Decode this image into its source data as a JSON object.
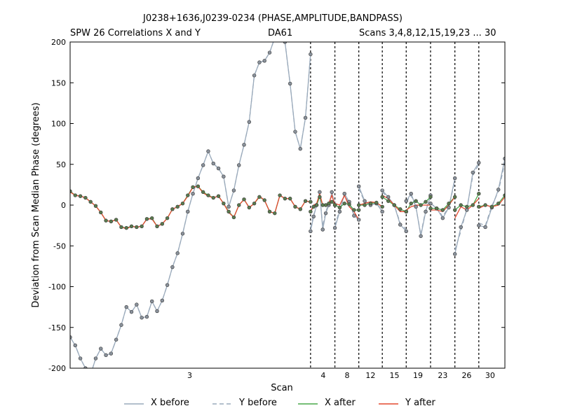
{
  "chart_data": {
    "type": "line",
    "title": "J0238+1636,J0239-0234 (PHASE,AMPLITUDE,BANDPASS)",
    "subtitle_left": "SPW 26 Correlations X and Y",
    "subtitle_center": "DA61",
    "subtitle_right": "Scans 3,4,8,12,15,19,23 ... 30",
    "xlabel": "Scan",
    "ylabel": "Deviation from Scan Median Phase (degrees)",
    "ylim": [
      -200,
      200
    ],
    "yticks": [
      -200,
      -150,
      -100,
      -50,
      0,
      50,
      100,
      150,
      200
    ],
    "grid": false,
    "legend_position": "bottom",
    "xticks": [
      {
        "scan": "3",
        "fraction": 0.275
      },
      {
        "scan": "4",
        "fraction": 0.582
      },
      {
        "scan": "8",
        "fraction": 0.637
      },
      {
        "scan": "12",
        "fraction": 0.691
      },
      {
        "scan": "15",
        "fraction": 0.746
      },
      {
        "scan": "19",
        "fraction": 0.8
      },
      {
        "scan": "23",
        "fraction": 0.857
      },
      {
        "scan": "26",
        "fraction": 0.912
      },
      {
        "scan": "30",
        "fraction": 0.966
      }
    ],
    "scan_boundaries_fraction": [
      0.553,
      0.609,
      0.664,
      0.718,
      0.773,
      0.829,
      0.885,
      0.94
    ],
    "series": [
      {
        "name": "X before",
        "color": "#9aaabb",
        "style": "solid",
        "segments": [
          {
            "x0": 0.0,
            "x1": 0.553,
            "values": [
              -162,
              -172,
              -188,
              -200,
              -208,
              -188,
              -176,
              -184,
              -182,
              -165,
              -147,
              -125,
              -131,
              -122,
              -138,
              -137,
              -118,
              -130,
              -117,
              -98,
              -76,
              -59,
              -35,
              -8,
              14,
              33,
              49,
              66,
              51,
              45,
              35,
              -2,
              18,
              49,
              74,
              102,
              159,
              175,
              177,
              187,
              205,
              213,
              200,
              149,
              90,
              69,
              107,
              185
            ]
          },
          {
            "x0": 0.553,
            "x1": 0.609,
            "values": [
              -32,
              -14,
              0,
              16,
              -30,
              -10,
              0,
              16,
              0
            ]
          },
          {
            "x0": 0.609,
            "x1": 0.664,
            "values": [
              -28,
              -8,
              14,
              4,
              -13,
              -18
            ]
          },
          {
            "x0": 0.664,
            "x1": 0.718,
            "values": [
              23,
              5,
              0,
              2,
              -8
            ]
          },
          {
            "x0": 0.718,
            "x1": 0.773,
            "values": [
              18,
              10,
              0,
              -24,
              -32
            ]
          },
          {
            "x0": 0.773,
            "x1": 0.829,
            "values": [
              5,
              14,
              -2,
              -38,
              -8,
              12
            ]
          },
          {
            "x0": 0.829,
            "x1": 0.885,
            "values": [
              2,
              -4,
              -16,
              -3,
              33
            ]
          },
          {
            "x0": 0.885,
            "x1": 0.94,
            "values": [
              -60,
              -27,
              -6,
              40,
              52
            ]
          },
          {
            "x0": 0.94,
            "x1": 1.0,
            "values": [
              -25,
              -27,
              -3,
              19,
              57
            ]
          }
        ]
      },
      {
        "name": "Y before",
        "color": "#9aaabb",
        "style": "dashed",
        "segments": [
          {
            "x0": 0.0,
            "x1": 0.553,
            "values": [
              -162,
              -172,
              -188,
              -200,
              -208,
              -188,
              -176,
              -184,
              -182,
              -165,
              -147,
              -125,
              -131,
              -122,
              -138,
              -137,
              -118,
              -130,
              -117,
              -98,
              -76,
              -59,
              -35,
              -8,
              14,
              33,
              49,
              66,
              51,
              45,
              35,
              -2,
              18,
              49,
              74,
              102,
              159,
              175,
              177,
              187,
              205,
              213,
              200,
              149,
              90,
              69,
              107,
              185
            ]
          },
          {
            "x0": 0.553,
            "x1": 0.609,
            "values": [
              -28,
              -12,
              -2,
              14,
              -26,
              -8,
              2,
              14,
              0
            ]
          },
          {
            "x0": 0.609,
            "x1": 0.664,
            "values": [
              -25,
              -6,
              12,
              2,
              -12,
              -16
            ]
          },
          {
            "x0": 0.664,
            "x1": 0.718,
            "values": [
              20,
              4,
              0,
              2,
              -6
            ]
          },
          {
            "x0": 0.718,
            "x1": 0.773,
            "values": [
              16,
              9,
              0,
              -22,
              -30
            ]
          },
          {
            "x0": 0.773,
            "x1": 0.829,
            "values": [
              4,
              12,
              -3,
              -36,
              -6,
              10
            ]
          },
          {
            "x0": 0.829,
            "x1": 0.885,
            "values": [
              2,
              -3,
              -14,
              -2,
              30
            ]
          },
          {
            "x0": 0.885,
            "x1": 0.94,
            "values": [
              -55,
              -32,
              -4,
              36,
              50
            ]
          },
          {
            "x0": 0.94,
            "x1": 1.0,
            "values": [
              -22,
              -25,
              -1,
              17,
              52
            ]
          }
        ]
      },
      {
        "name": "X after",
        "color": "#49a84a",
        "style": "solid",
        "segments": [
          {
            "x0": 0.0,
            "x1": 0.553,
            "values": [
              17,
              12,
              11,
              9,
              4,
              -1,
              -9,
              -19,
              -20,
              -18,
              -27,
              -28,
              -26,
              -27,
              -26,
              -17,
              -16,
              -26,
              -23,
              -16,
              -5,
              -2,
              2,
              12,
              22,
              23,
              16,
              12,
              9,
              11,
              2,
              -8,
              -15,
              0,
              7,
              -3,
              2,
              10,
              6,
              -8,
              -10,
              12,
              8,
              8,
              -2,
              -5,
              5,
              4
            ]
          },
          {
            "x0": 0.553,
            "x1": 0.609,
            "values": [
              -8,
              -2,
              0,
              10,
              0,
              0,
              2,
              4,
              0
            ]
          },
          {
            "x0": 0.609,
            "x1": 0.664,
            "values": [
              0,
              -3,
              2,
              1,
              -6,
              -6
            ]
          },
          {
            "x0": 0.664,
            "x1": 0.718,
            "values": [
              0,
              0,
              2,
              3,
              -2
            ]
          },
          {
            "x0": 0.718,
            "x1": 0.773,
            "values": [
              10,
              5,
              0,
              -5,
              -8
            ]
          },
          {
            "x0": 0.773,
            "x1": 0.829,
            "values": [
              -8,
              2,
              5,
              0,
              4,
              10
            ]
          },
          {
            "x0": 0.829,
            "x1": 0.885,
            "values": [
              -4,
              -4,
              -6,
              2,
              10
            ]
          },
          {
            "x0": 0.885,
            "x1": 0.94,
            "values": [
              -6,
              0,
              -2,
              0,
              14
            ]
          },
          {
            "x0": 0.94,
            "x1": 1.0,
            "values": [
              -2,
              0,
              -2,
              2,
              12
            ]
          }
        ]
      },
      {
        "name": "Y after",
        "color": "#e4492f",
        "style": "solid",
        "segments": [
          {
            "x0": 0.0,
            "x1": 0.553,
            "values": [
              16,
              12,
              11,
              9,
              4,
              -1,
              -9,
              -19,
              -20,
              -18,
              -27,
              -29,
              -26,
              -27,
              -26,
              -17,
              -17,
              -26,
              -23,
              -16,
              -5,
              -2,
              2,
              11,
              22,
              23,
              15,
              11,
              9,
              11,
              2,
              -9,
              -15,
              0,
              7,
              -3,
              2,
              11,
              6,
              -8,
              -10,
              12,
              8,
              8,
              -2,
              -5,
              5,
              4
            ]
          },
          {
            "x0": 0.553,
            "x1": 0.609,
            "values": [
              -8,
              0,
              2,
              14,
              0,
              0,
              2,
              12,
              0
            ]
          },
          {
            "x0": 0.609,
            "x1": 0.664,
            "values": [
              2,
              0,
              12,
              -2,
              -8,
              -18
            ]
          },
          {
            "x0": 0.664,
            "x1": 0.718,
            "values": [
              0,
              2,
              4,
              3,
              -2
            ]
          },
          {
            "x0": 0.718,
            "x1": 0.773,
            "values": [
              12,
              8,
              0,
              -8,
              -8
            ]
          },
          {
            "x0": 0.773,
            "x1": 0.829,
            "values": [
              -6,
              -2,
              0,
              0,
              0,
              0
            ]
          },
          {
            "x0": 0.829,
            "x1": 0.885,
            "values": [
              -6,
              -6,
              -8,
              0,
              10
            ]
          },
          {
            "x0": 0.885,
            "x1": 0.94,
            "values": [
              -16,
              -2,
              -6,
              0,
              8
            ]
          },
          {
            "x0": 0.94,
            "x1": 1.0,
            "values": [
              -4,
              0,
              -2,
              0,
              10
            ]
          }
        ]
      }
    ]
  }
}
